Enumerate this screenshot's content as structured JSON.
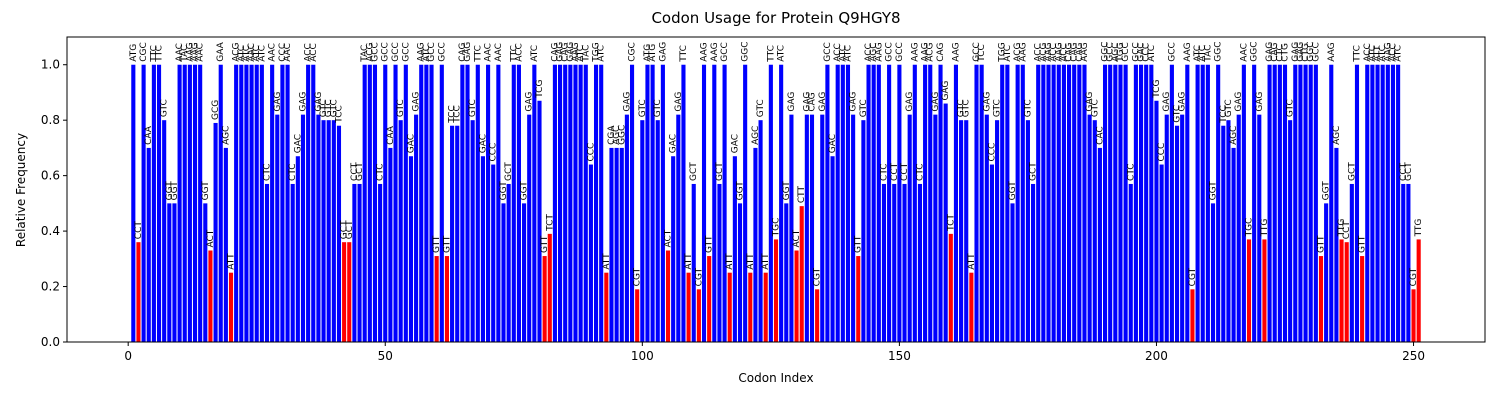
{
  "chart_data": {
    "type": "bar",
    "title": "Codon Usage for Protein Q9HGY8",
    "x_label": "Codon Index",
    "y_label": "Relative Frequency",
    "x": [
      1,
      2,
      3,
      4,
      5,
      6,
      7,
      8,
      9,
      10,
      11,
      12,
      13,
      14,
      15,
      16,
      17,
      18,
      19,
      20,
      21,
      22,
      23,
      24,
      25,
      26,
      27,
      28,
      29,
      30,
      31,
      32,
      33,
      34,
      35,
      36,
      37,
      38,
      39,
      40,
      41,
      42,
      43,
      44,
      45,
      46,
      47,
      48,
      49,
      50,
      51,
      52,
      53,
      54,
      55,
      56,
      57,
      58,
      59,
      60,
      61,
      62,
      63,
      64,
      65,
      66,
      67,
      68,
      69,
      70,
      71,
      72,
      73,
      74,
      75,
      76,
      77,
      78,
      79,
      80,
      81,
      82,
      83,
      84,
      85,
      86,
      87,
      88,
      89,
      90,
      91,
      92,
      93,
      94,
      95,
      96,
      97,
      98,
      99,
      100,
      101,
      102,
      103,
      104,
      105,
      106,
      107,
      108,
      109,
      110,
      111,
      112,
      113,
      114,
      115,
      116,
      117,
      118,
      119,
      120,
      121,
      122,
      123,
      124,
      125,
      126,
      127,
      128,
      129,
      130,
      131,
      132,
      133,
      134,
      135,
      136,
      137,
      138,
      139,
      140,
      141,
      142,
      143,
      144,
      145,
      146,
      147,
      148,
      149,
      150,
      151,
      152,
      153,
      154,
      155,
      156,
      157,
      158,
      159,
      160,
      161,
      162,
      163,
      164,
      165,
      166,
      167,
      168,
      169,
      170,
      171,
      172,
      173,
      174,
      175,
      176,
      177,
      178,
      179,
      180,
      181,
      182,
      183,
      184,
      185,
      186,
      187,
      188,
      189,
      190,
      191,
      192,
      193,
      194,
      195,
      196,
      197,
      198,
      199,
      200,
      201,
      202,
      203,
      204,
      205,
      206,
      207,
      208,
      209,
      210,
      211,
      212,
      213,
      214,
      215,
      216,
      217,
      218,
      219,
      220,
      221,
      222,
      223,
      224,
      225,
      226,
      227,
      228,
      229,
      230,
      231,
      232,
      233,
      234,
      235,
      236,
      237,
      238,
      239,
      240,
      241,
      242,
      243,
      244,
      245,
      246,
      247,
      248,
      249,
      250,
      251
    ],
    "value_labels": [
      "ATG",
      "CCT",
      "CGC",
      "CAA",
      "TTC",
      "TTC",
      "GTC",
      "GGT",
      "GGT",
      "AAC",
      "TAC",
      "AAG",
      "AAG",
      "AAC",
      "GGT",
      "ACT",
      "GCG",
      "GAA",
      "AGC",
      "ATT",
      "ACG",
      "ATC",
      "ATC",
      "AAC",
      "ATC",
      "ATC",
      "CTC",
      "AAC",
      "GAG",
      "CCC",
      "AAC",
      "CTC",
      "GAC",
      "GAG",
      "ACC",
      "ACC",
      "GAG",
      "GTC",
      "GTC",
      "GTC",
      "TCC",
      "GCT",
      "GCT",
      "CCT",
      "GCT",
      "TAC",
      "ACG",
      "GCC",
      "CTC",
      "GCC",
      "CAA",
      "GCC",
      "GTC",
      "GCC",
      "GAC",
      "GAG",
      "AAG",
      "ATC",
      "GCC",
      "GTT",
      "GCC",
      "GTT",
      "TCC",
      "TCC",
      "CAG",
      "GAG",
      "GTC",
      "TTC",
      "GAC",
      "AAC",
      "CCC",
      "AAC",
      "GGT",
      "GCT",
      "TTC",
      "ACC",
      "GGT",
      "GAG",
      "ATC",
      "TCG",
      "GTT",
      "TCT",
      "CAG",
      "GAG",
      "CAG",
      "GAG",
      "AAG",
      "ATC",
      "TAC",
      "CCC",
      "TGG",
      "ATC",
      "ATT",
      "CGA",
      "AGC",
      "GGC",
      "GAG",
      "CGC",
      "CGT",
      "GTC",
      "ATG",
      "ATG",
      "GTC",
      "GAG",
      "ACT",
      "GAC",
      "GAG",
      "TTC",
      "ATT",
      "GCT",
      "CGT",
      "AAG",
      "GTT",
      "AAG",
      "GCT",
      "GCC",
      "ATT",
      "GAC",
      "GGT",
      "GGC",
      "ATT",
      "AGC",
      "GTC",
      "ATT",
      "TTC",
      "TGC",
      "ATC",
      "GGT",
      "GAG",
      "ACT",
      "CTT",
      "GAG",
      "CAG",
      "CGT",
      "GAG",
      "GCC",
      "GAC",
      "ACC",
      "ATC",
      "ATC",
      "GAG",
      "GTT",
      "GTC",
      "ACC",
      "AGC",
      "AAG",
      "CTC",
      "GCC",
      "CCT",
      "GCC",
      "CCT",
      "GAG",
      "AAG",
      "CTC",
      "AAG",
      "ACG",
      "GAG",
      "CAG",
      "GAG",
      "TCT",
      "AAG",
      "GTC",
      "GTC",
      "ATT",
      "GCC",
      "TCC",
      "GAG",
      "CCC",
      "GTC",
      "TGG",
      "ATC",
      "GGT",
      "ACG",
      "AAG",
      "GTC",
      "GCT",
      "ACC",
      "ACG",
      "AAG",
      "ACC",
      "AAG",
      "ACC",
      "CAG",
      "CAG",
      "CAG",
      "AAG",
      "GAG",
      "GTC",
      "CAC",
      "GGC",
      "GCC",
      "AGC",
      "TGG",
      "GCC",
      "CTC",
      "GCC",
      "GAC",
      "CCC",
      "ATC",
      "TCG",
      "CCC",
      "GAG",
      "GCC",
      "GTC",
      "GAG",
      "AAG",
      "CGT",
      "ATC",
      "ATC",
      "TAC",
      "GGT",
      "GGC",
      "TCC",
      "GTC",
      "AGC",
      "GAG",
      "AAC",
      "TGC",
      "GGC",
      "GAG",
      "TTG",
      "GAG",
      "CAG",
      "CTC",
      "CTG",
      "GTC",
      "GAG",
      "GAG",
      "CTG",
      "GGC",
      "GCC",
      "GTT",
      "GGT",
      "AAG",
      "AGC",
      "TTG",
      "CCT",
      "GCT",
      "TTC",
      "GTT",
      "ACC",
      "ATC",
      "ATT",
      "ATC",
      "AAG",
      "ACC",
      "ATC",
      "CCT",
      "GCT",
      "CGT",
      "TTG"
    ],
    "values": [
      1,
      0.36,
      1,
      0.7,
      1,
      1,
      0.8,
      0.5,
      0.5,
      1,
      1,
      1,
      1,
      1,
      0.5,
      0.33,
      0.79,
      1,
      0.7,
      0.25,
      1,
      1,
      1,
      1,
      1,
      1,
      0.57,
      1,
      0.82,
      1,
      1,
      0.57,
      0.67,
      0.82,
      1,
      1,
      0.82,
      0.8,
      0.8,
      0.8,
      0.78,
      0.36,
      0.36,
      0.57,
      0.57,
      1,
      1,
      1,
      0.57,
      1,
      0.7,
      1,
      0.8,
      1,
      0.67,
      0.82,
      1,
      1,
      1,
      0.31,
      1,
      0.31,
      0.78,
      0.78,
      1,
      1,
      0.8,
      1,
      0.67,
      1,
      0.64,
      1,
      0.5,
      0.57,
      1,
      1,
      0.5,
      0.82,
      1,
      0.87,
      0.31,
      0.39,
      1,
      1,
      1,
      1,
      1,
      1,
      1,
      0.64,
      1,
      1,
      0.25,
      0.7,
      0.7,
      0.7,
      0.82,
      1,
      0.19,
      0.8,
      1,
      1,
      0.8,
      1,
      0.33,
      0.67,
      0.82,
      1,
      0.25,
      0.57,
      0.19,
      1,
      0.31,
      1,
      0.57,
      1,
      0.25,
      0.67,
      0.5,
      1,
      0.25,
      0.7,
      0.8,
      0.25,
      1,
      0.37,
      1,
      0.5,
      0.82,
      0.33,
      0.49,
      0.82,
      0.82,
      0.19,
      0.82,
      1,
      0.67,
      1,
      1,
      1,
      0.82,
      0.31,
      0.8,
      1,
      1,
      1,
      0.57,
      1,
      0.57,
      1,
      0.57,
      0.82,
      1,
      0.57,
      1,
      1,
      0.82,
      1,
      0.86,
      0.39,
      1,
      0.8,
      0.8,
      0.25,
      1,
      1,
      0.82,
      0.64,
      0.8,
      1,
      1,
      0.5,
      1,
      1,
      0.8,
      0.57,
      1,
      1,
      1,
      1,
      1,
      1,
      1,
      1,
      1,
      1,
      0.82,
      0.8,
      0.7,
      1,
      1,
      1,
      1,
      1,
      0.57,
      1,
      1,
      1,
      1,
      0.87,
      0.64,
      0.82,
      1,
      0.78,
      0.82,
      1,
      0.19,
      1,
      1,
      1,
      0.5,
      1,
      0.78,
      0.8,
      0.7,
      0.82,
      1,
      0.37,
      1,
      0.82,
      0.37,
      1,
      1,
      1,
      1,
      0.8,
      1,
      1,
      1,
      1,
      1,
      0.31,
      0.5,
      1,
      0.7,
      0.37,
      0.36,
      0.57,
      1,
      0.31,
      1,
      1,
      1,
      1,
      1,
      1,
      1,
      0.57,
      0.57,
      0.19,
      0.37
    ],
    "colors": [
      "blue",
      "red",
      "blue",
      "blue",
      "blue",
      "blue",
      "blue",
      "blue",
      "blue",
      "blue",
      "blue",
      "blue",
      "blue",
      "blue",
      "blue",
      "red",
      "blue",
      "blue",
      "blue",
      "red",
      "blue",
      "blue",
      "blue",
      "blue",
      "blue",
      "blue",
      "blue",
      "blue",
      "blue",
      "blue",
      "blue",
      "blue",
      "blue",
      "blue",
      "blue",
      "blue",
      "blue",
      "blue",
      "blue",
      "blue",
      "blue",
      "red",
      "red",
      "blue",
      "blue",
      "blue",
      "blue",
      "blue",
      "blue",
      "blue",
      "blue",
      "blue",
      "blue",
      "blue",
      "blue",
      "blue",
      "blue",
      "blue",
      "blue",
      "red",
      "blue",
      "red",
      "blue",
      "blue",
      "blue",
      "blue",
      "blue",
      "blue",
      "blue",
      "blue",
      "blue",
      "blue",
      "blue",
      "blue",
      "blue",
      "blue",
      "blue",
      "blue",
      "blue",
      "blue",
      "red",
      "red",
      "blue",
      "blue",
      "blue",
      "blue",
      "blue",
      "blue",
      "blue",
      "blue",
      "blue",
      "blue",
      "red",
      "blue",
      "blue",
      "blue",
      "blue",
      "blue",
      "red",
      "blue",
      "blue",
      "blue",
      "blue",
      "blue",
      "red",
      "blue",
      "blue",
      "blue",
      "red",
      "blue",
      "red",
      "blue",
      "red",
      "blue",
      "blue",
      "blue",
      "red",
      "blue",
      "blue",
      "blue",
      "red",
      "blue",
      "blue",
      "red",
      "blue",
      "red",
      "blue",
      "blue",
      "blue",
      "red",
      "red",
      "blue",
      "blue",
      "red",
      "blue",
      "blue",
      "blue",
      "blue",
      "blue",
      "blue",
      "blue",
      "red",
      "blue",
      "blue",
      "blue",
      "blue",
      "blue",
      "blue",
      "blue",
      "blue",
      "blue",
      "blue",
      "blue",
      "blue",
      "blue",
      "blue",
      "blue",
      "blue",
      "blue",
      "red",
      "blue",
      "blue",
      "blue",
      "red",
      "blue",
      "blue",
      "blue",
      "blue",
      "blue",
      "blue",
      "blue",
      "blue",
      "blue",
      "blue",
      "blue",
      "blue",
      "blue",
      "blue",
      "blue",
      "blue",
      "blue",
      "blue",
      "blue",
      "blue",
      "blue",
      "blue",
      "blue",
      "blue",
      "blue",
      "blue",
      "blue",
      "blue",
      "blue",
      "blue",
      "blue",
      "blue",
      "blue",
      "blue",
      "blue",
      "blue",
      "blue",
      "blue",
      "blue",
      "blue",
      "blue",
      "blue",
      "red",
      "blue",
      "blue",
      "blue",
      "blue",
      "blue",
      "blue",
      "blue",
      "blue",
      "blue",
      "blue",
      "red",
      "blue",
      "blue",
      "red",
      "blue",
      "blue",
      "blue",
      "blue",
      "blue",
      "blue",
      "blue",
      "blue",
      "blue",
      "blue",
      "red",
      "blue",
      "blue",
      "blue",
      "red",
      "red",
      "blue",
      "blue",
      "red",
      "blue",
      "blue",
      "blue",
      "blue",
      "blue",
      "blue",
      "blue",
      "blue",
      "blue",
      "red",
      "red"
    ],
    "xlim": [
      -11.9,
      263.9
    ],
    "xticks": [
      0,
      50,
      100,
      150,
      200,
      250
    ],
    "ylim": [
      0,
      1.1
    ],
    "yticks": [
      {
        "value": 0,
        "label": "0.0"
      },
      0.2,
      0.4,
      0.6,
      0.8,
      {
        "value": 1,
        "label": "1.0"
      }
    ]
  }
}
